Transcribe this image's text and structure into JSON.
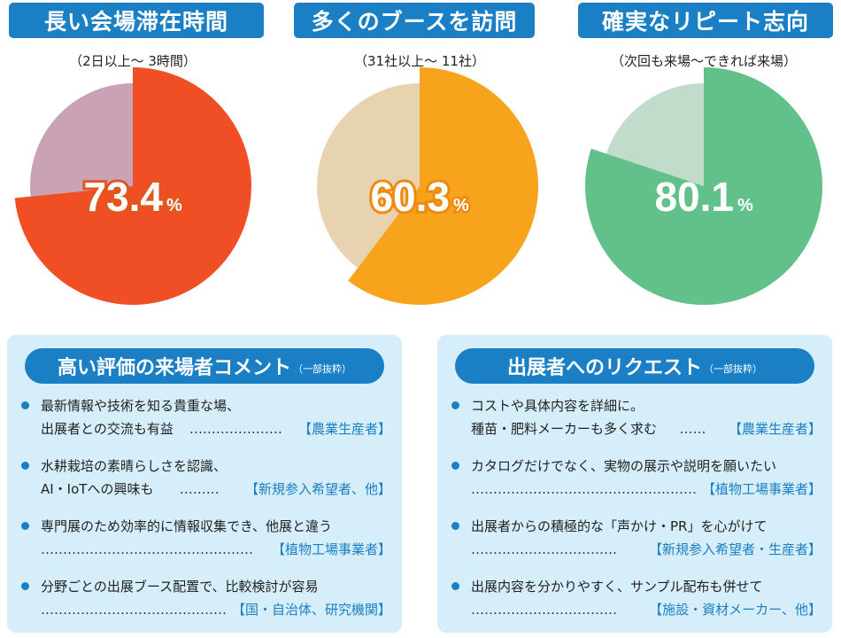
{
  "chart_data": [
    {
      "type": "pie",
      "title": "長い会場滞在時間",
      "subtitle": "（2日以上～ 3時間）",
      "value": 73.4,
      "value_label": "73.4",
      "unit": "%",
      "colors": {
        "main": "#f04e24",
        "rest": "#c9a3b5"
      }
    },
    {
      "type": "pie",
      "title": "多くのブースを訪問",
      "subtitle": "（31社以上～ 11社）",
      "value": 60.3,
      "value_label": "60.3",
      "unit": "%",
      "colors": {
        "main": "#f7a41c",
        "rest": "#e8d3b1"
      }
    },
    {
      "type": "pie",
      "title": "確実なリピート志向",
      "subtitle": "（次回も来場～できれば来場）",
      "value": 80.1,
      "value_label": "80.1",
      "unit": "%",
      "colors": {
        "main": "#62c08a",
        "rest": "#c2dccb"
      }
    }
  ],
  "left_panel": {
    "title": "高い評価の来場者コメント",
    "note": "（一部抜粋）",
    "items": [
      {
        "line1": "最新情報や技術を知る貴重な場、",
        "line2": "出展者との交流も有益",
        "dots": "…………………",
        "tag": "【農業生産者】"
      },
      {
        "line1": "水耕栽培の素晴らしさを認識、",
        "line2": "AI・IoTへの興味も",
        "dots": "………",
        "tag": "【新規参入希望者、他】"
      },
      {
        "line1": "専門展のため効率的に情報収集でき、他展と違う",
        "line2": "",
        "dots": "…………………………………………",
        "tag": "【植物工場事業者】"
      },
      {
        "line1": "分野ごとの出展ブース配置で、比較検討が容易",
        "line2": "",
        "dots": "……………………………………",
        "tag": "【国・自治体、研究機関】"
      }
    ]
  },
  "right_panel": {
    "title": "出展者へのリクエスト",
    "note": "（一部抜粋）",
    "items": [
      {
        "line1": "コストや具体内容を詳細に。",
        "line2": "種苗・肥料メーカーも多く求む",
        "dots": "……",
        "tag": "【農業生産者】"
      },
      {
        "line1": "カタログだけでなく、実物の展示や説明を願いたい",
        "line2": "",
        "dots": "……………………………………………",
        "tag": "【植物工場事業者】"
      },
      {
        "line1": "出展者からの積極的な「声かけ・PR」を心がけて",
        "line2": "",
        "dots": "……………………………",
        "tag": "【新規参入希望者・生産者】"
      },
      {
        "line1": "出展内容を分かりやすく、サンプル配布も併せて",
        "line2": "",
        "dots": "……………………………",
        "tag": "【施設・資材メーカー、他】"
      }
    ]
  }
}
